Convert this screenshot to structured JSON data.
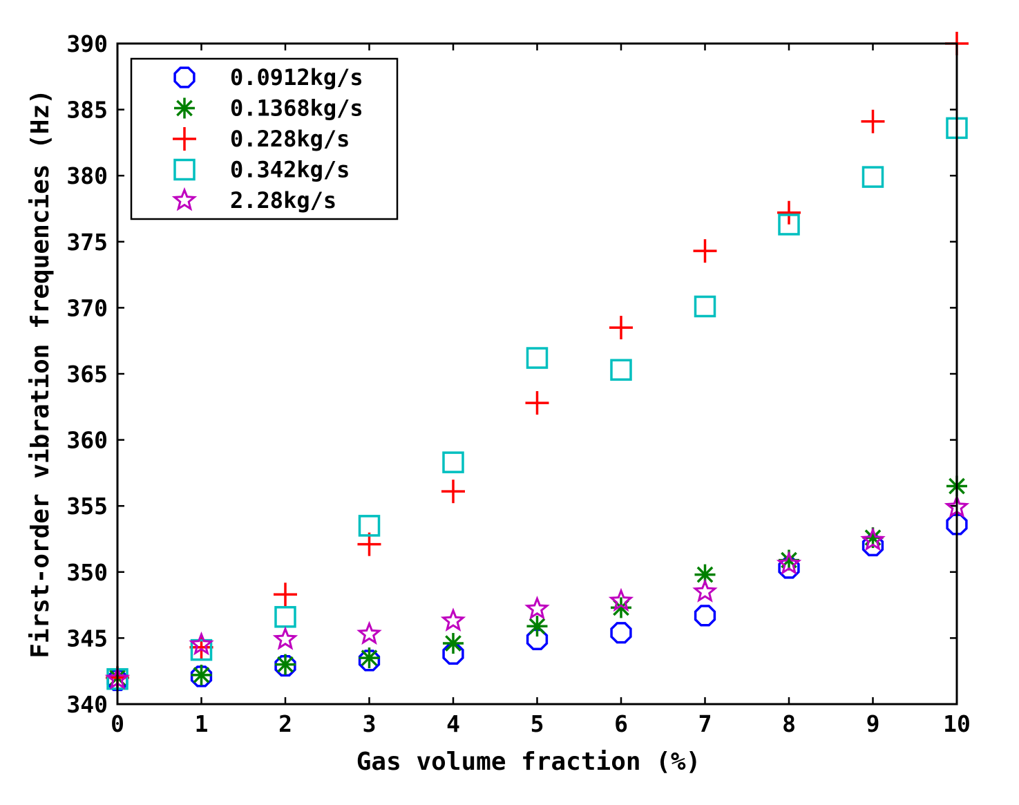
{
  "chart_data": {
    "type": "scatter",
    "title": "",
    "xlabel": "Gas volume fraction (%)",
    "ylabel": "First-order vibration frequencies (Hz)",
    "xlim": [
      0,
      10
    ],
    "ylim": [
      340,
      390
    ],
    "xticks": [
      0,
      1,
      2,
      3,
      4,
      5,
      6,
      7,
      8,
      9,
      10
    ],
    "yticks": [
      340,
      345,
      350,
      355,
      360,
      365,
      370,
      375,
      380,
      385,
      390
    ],
    "grid": false,
    "legend_position": "top-left",
    "x": [
      0,
      1,
      2,
      3,
      4,
      5,
      6,
      7,
      8,
      9,
      10
    ],
    "series": [
      {
        "name": "0.0912kg/s",
        "marker": "circle",
        "color": "#0000ff",
        "values": [
          341.8,
          342.1,
          342.9,
          343.3,
          343.8,
          344.9,
          345.4,
          346.7,
          350.3,
          352.0,
          353.6
        ]
      },
      {
        "name": "0.1368kg/s",
        "marker": "asterisk",
        "color": "#008000",
        "values": [
          342.0,
          342.2,
          343.0,
          343.5,
          344.6,
          345.9,
          347.3,
          349.8,
          350.9,
          352.6,
          356.5
        ]
      },
      {
        "name": "0.228kg/s",
        "marker": "plus",
        "color": "#ff0000",
        "values": [
          342.0,
          344.3,
          348.3,
          352.1,
          356.1,
          362.8,
          368.5,
          374.3,
          377.2,
          384.1,
          390.0
        ]
      },
      {
        "name": "0.342kg/s",
        "marker": "square",
        "color": "#00bfbf",
        "values": [
          341.9,
          344.1,
          346.6,
          353.5,
          358.3,
          366.2,
          365.3,
          370.1,
          376.3,
          379.9,
          383.6
        ]
      },
      {
        "name": "2.28kg/s",
        "marker": "star",
        "color": "#bf00bf",
        "values": [
          341.9,
          344.5,
          344.9,
          345.3,
          346.3,
          347.2,
          347.8,
          348.5,
          350.6,
          352.4,
          354.9
        ]
      }
    ]
  }
}
